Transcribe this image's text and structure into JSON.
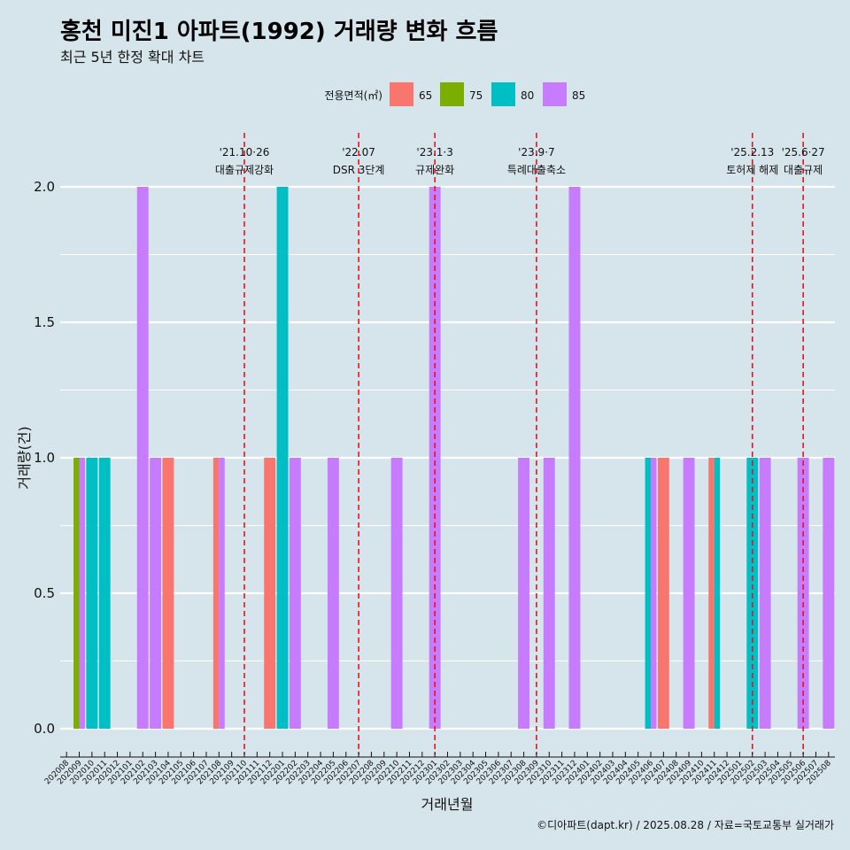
{
  "chart_data": {
    "type": "bar",
    "title": "홍천 미진1 아파트(1992) 거래량 변화 흐름",
    "subtitle": "최근 5년 한정 확대 차트",
    "xlabel": "거래년월",
    "ylabel": "거래량(건)",
    "caption": "©디아파트(dapt.kr) / 2025.08.28 / 자료=국토교통부 실거래가",
    "legend": {
      "title": "전용면적(㎡)",
      "position": "top",
      "items": [
        {
          "name": "65",
          "color": "#F8766D"
        },
        {
          "name": "75",
          "color": "#7CAE00"
        },
        {
          "name": "80",
          "color": "#00BFC4"
        },
        {
          "name": "85",
          "color": "#C77CFF"
        }
      ]
    },
    "ylim": [
      0,
      2
    ],
    "yticks": [
      "0.0",
      "0.5",
      "1.0",
      "1.5",
      "2.0"
    ],
    "categories": [
      "202008",
      "202009",
      "202010",
      "202011",
      "202012",
      "202101",
      "202102",
      "202103",
      "202104",
      "202105",
      "202106",
      "202107",
      "202108",
      "202109",
      "202110",
      "202111",
      "202112",
      "202201",
      "202202",
      "202203",
      "202204",
      "202205",
      "202206",
      "202207",
      "202208",
      "202209",
      "202210",
      "202211",
      "202212",
      "202301",
      "202302",
      "202303",
      "202304",
      "202305",
      "202306",
      "202307",
      "202308",
      "202309",
      "202310",
      "202311",
      "202312",
      "202401",
      "202402",
      "202403",
      "202404",
      "202405",
      "202406",
      "202407",
      "202408",
      "202409",
      "202410",
      "202411",
      "202412",
      "202501",
      "202502",
      "202503",
      "202504",
      "202505",
      "202506",
      "202507",
      "202508"
    ],
    "bars": [
      {
        "x": "202009",
        "segments": [
          {
            "area": "75",
            "value": 1
          },
          {
            "area": "85",
            "value": 1
          }
        ]
      },
      {
        "x": "202010",
        "segments": [
          {
            "area": "80",
            "value": 1
          }
        ]
      },
      {
        "x": "202011",
        "segments": [
          {
            "area": "80",
            "value": 1
          }
        ]
      },
      {
        "x": "202102",
        "segments": [
          {
            "area": "85",
            "value": 2
          }
        ]
      },
      {
        "x": "202103",
        "segments": [
          {
            "area": "85",
            "value": 1
          }
        ]
      },
      {
        "x": "202104",
        "segments": [
          {
            "area": "65",
            "value": 1
          }
        ]
      },
      {
        "x": "202108",
        "segments": [
          {
            "area": "65",
            "value": 1
          },
          {
            "area": "85",
            "value": 1
          }
        ]
      },
      {
        "x": "202112",
        "segments": [
          {
            "area": "65",
            "value": 1
          }
        ]
      },
      {
        "x": "202201",
        "segments": [
          {
            "area": "80",
            "value": 2
          }
        ]
      },
      {
        "x": "202202",
        "segments": [
          {
            "area": "85",
            "value": 1
          }
        ]
      },
      {
        "x": "202205",
        "segments": [
          {
            "area": "85",
            "value": 1
          }
        ]
      },
      {
        "x": "202210",
        "segments": [
          {
            "area": "85",
            "value": 1
          }
        ]
      },
      {
        "x": "202301",
        "segments": [
          {
            "area": "85",
            "value": 2
          }
        ]
      },
      {
        "x": "202308",
        "segments": [
          {
            "area": "85",
            "value": 1
          }
        ]
      },
      {
        "x": "202310",
        "segments": [
          {
            "area": "85",
            "value": 1
          }
        ]
      },
      {
        "x": "202312",
        "segments": [
          {
            "area": "85",
            "value": 2
          }
        ]
      },
      {
        "x": "202406",
        "segments": [
          {
            "area": "80",
            "value": 1
          },
          {
            "area": "85",
            "value": 1
          }
        ]
      },
      {
        "x": "202407",
        "segments": [
          {
            "area": "65",
            "value": 1
          }
        ]
      },
      {
        "x": "202409",
        "segments": [
          {
            "area": "85",
            "value": 1
          }
        ]
      },
      {
        "x": "202411",
        "segments": [
          {
            "area": "65",
            "value": 1
          },
          {
            "area": "80",
            "value": 1
          }
        ]
      },
      {
        "x": "202502",
        "segments": [
          {
            "area": "80",
            "value": 1
          }
        ]
      },
      {
        "x": "202503",
        "segments": [
          {
            "area": "85",
            "value": 1
          }
        ]
      },
      {
        "x": "202506",
        "segments": [
          {
            "area": "85",
            "value": 1
          }
        ]
      },
      {
        "x": "202508",
        "segments": [
          {
            "area": "85",
            "value": 1
          }
        ]
      }
    ],
    "annotations": [
      {
        "x": "202110",
        "date": "'21.10·26",
        "label": "대출규제강화"
      },
      {
        "x": "202207",
        "date": "'22.07",
        "label": "DSR 3단계"
      },
      {
        "x": "202301",
        "date": "'23.1·3",
        "label": "규제완화"
      },
      {
        "x": "202309",
        "date": "'23.9·7",
        "label": "특례대출축소"
      },
      {
        "x": "202502",
        "date": "'25.2.13",
        "label": "토허제 해제"
      },
      {
        "x": "202506",
        "date": "'25.6·27",
        "label": "대출규제"
      }
    ],
    "grid": true,
    "ref_line_color": "#e8141c"
  }
}
